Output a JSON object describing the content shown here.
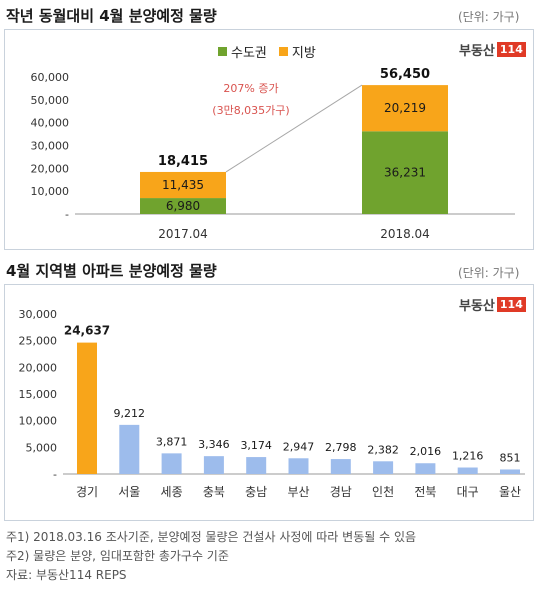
{
  "top": {
    "title": "작년 동월대비 4월 분양예정 물량",
    "unit": "(단위: 가구)",
    "brand": "부동산",
    "brand_num": "114",
    "annotation_line1": "207% 증가",
    "annotation_line2": "(3만8,035가구)"
  },
  "bottom": {
    "title": "4월 지역별 아파트 분양예정 물량",
    "unit": "(단위: 가구)",
    "brand": "부동산",
    "brand_num": "114"
  },
  "notes": [
    "주1) 2018.03.16 조사기준, 분양예정 물량은 건설사 사정에 따라 변동될 수 있음",
    "주2) 물량은 분양, 임대포함한 총가구수 기준",
    "자료: 부동산114 REPS"
  ],
  "chart_data": [
    {
      "type": "bar",
      "stacked": true,
      "title": "작년 동월대비 4월 분양예정 물량",
      "categories": [
        "2017.04",
        "2018.04"
      ],
      "series": [
        {
          "name": "수도권",
          "values": [
            6980,
            36231
          ],
          "color": "#70a32e"
        },
        {
          "name": "지방",
          "values": [
            11435,
            20219
          ],
          "color": "#f8a51a"
        }
      ],
      "totals": [
        18415,
        56450
      ],
      "value_labels": [
        [
          "6,980",
          "36,231"
        ],
        [
          "11,435",
          "20,219"
        ]
      ],
      "total_labels": [
        "18,415",
        "56,450"
      ],
      "yticks": [
        "-",
        "10,000",
        "20,000",
        "30,000",
        "40,000",
        "50,000",
        "60,000"
      ],
      "ylim": [
        0,
        60000
      ],
      "legend": "top-center"
    },
    {
      "type": "bar",
      "title": "4월 지역별 아파트 분양예정 물량",
      "categories": [
        "경기",
        "서울",
        "세종",
        "충북",
        "충남",
        "부산",
        "경남",
        "인천",
        "전북",
        "대구",
        "울산"
      ],
      "values": [
        24637,
        9212,
        3871,
        3346,
        3174,
        2947,
        2798,
        2382,
        2016,
        1216,
        851
      ],
      "value_labels": [
        "24,637",
        "9,212",
        "3,871",
        "3,346",
        "3,174",
        "2,947",
        "2,798",
        "2,382",
        "2,016",
        "1,216",
        "851"
      ],
      "highlight_color": "#f8a51a",
      "bar_color": "#9dbcec",
      "yticks": [
        "-",
        "5,000",
        "10,000",
        "15,000",
        "20,000",
        "25,000",
        "30,000"
      ],
      "ylim": [
        0,
        30000
      ]
    }
  ]
}
